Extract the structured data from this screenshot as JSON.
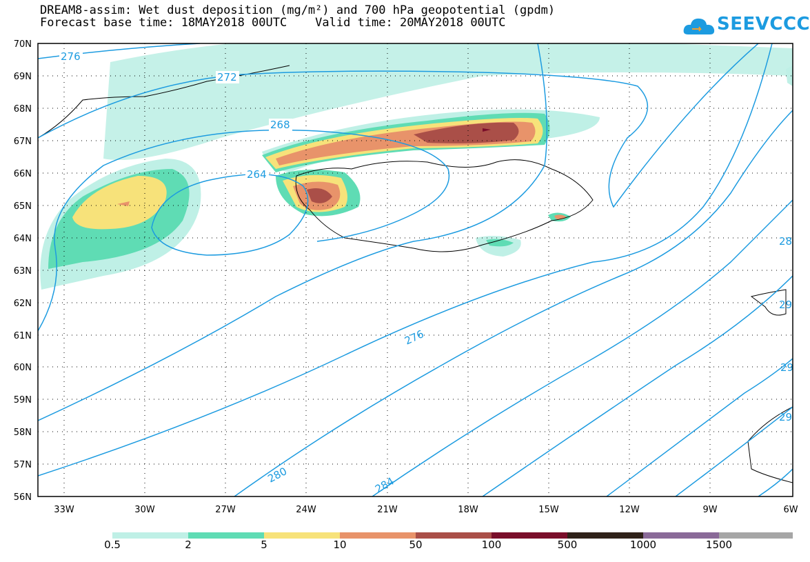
{
  "title_line1": "DREAM8-assim: Wet dust deposition (mg/m²) and 700 hPa geopotential (gpdm)",
  "title_line2": "Forecast base time: 18MAY2018 00UTC    Valid time: 20MAY2018 00UTC",
  "logo_text": "SEEVCCC",
  "map": {
    "lon_range": [
      -34,
      -6
    ],
    "lat_range": [
      56,
      70
    ],
    "lon_ticks": [
      "33W",
      "30W",
      "27W",
      "24W",
      "21W",
      "18W",
      "15W",
      "12W",
      "9W",
      "6W"
    ],
    "lat_ticks": [
      "70N",
      "69N",
      "68N",
      "67N",
      "66N",
      "65N",
      "64N",
      "63N",
      "62N",
      "61N",
      "60N",
      "59N",
      "58N",
      "57N",
      "56N"
    ],
    "contour_labels": [
      "276",
      "272",
      "268",
      "264",
      "276",
      "280",
      "284",
      "28",
      "29",
      "29",
      "29"
    ],
    "contour_color": "#1c9be0",
    "grid": true
  },
  "legend": {
    "labels": [
      "0.5",
      "2",
      "5",
      "10",
      "50",
      "100",
      "500",
      "1000",
      "1500"
    ],
    "colors": [
      "#bff0e6",
      "#5fdcb4",
      "#f7e27a",
      "#e8936a",
      "#aa4f48",
      "#7a0e2a",
      "#2f2219",
      "#8a6a98",
      "#a6a6a6"
    ]
  }
}
